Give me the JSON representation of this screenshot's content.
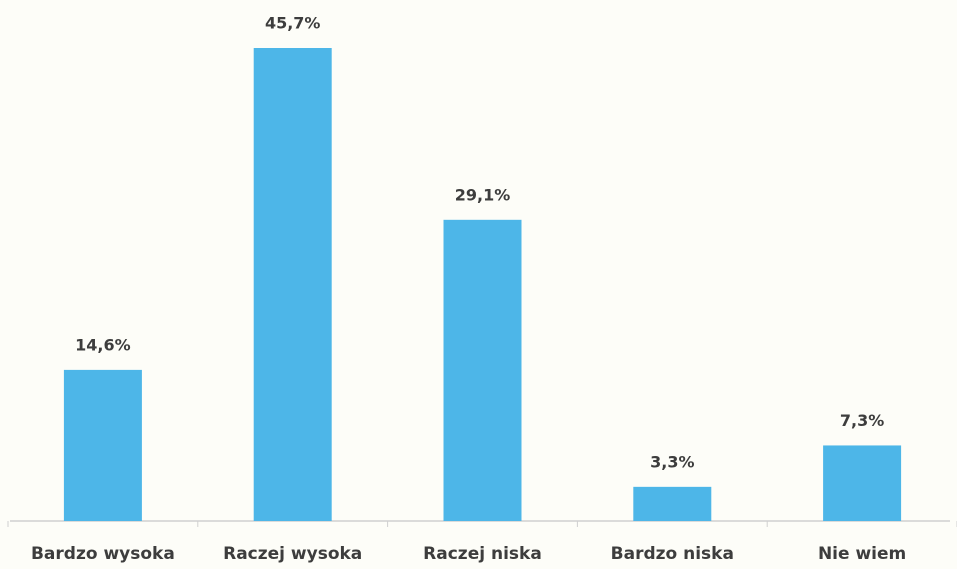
{
  "chart_data": {
    "type": "bar",
    "categories": [
      "Bardzo wysoka",
      "Raczej wysoka",
      "Raczej niska",
      "Bardzo niska",
      "Nie wiem"
    ],
    "values": [
      14.6,
      45.7,
      29.1,
      3.3,
      7.3
    ],
    "value_labels": [
      "14,6%",
      "45,7%",
      "29,1%",
      "3,3%",
      "7,3%"
    ],
    "color": "#4db6e8"
  }
}
